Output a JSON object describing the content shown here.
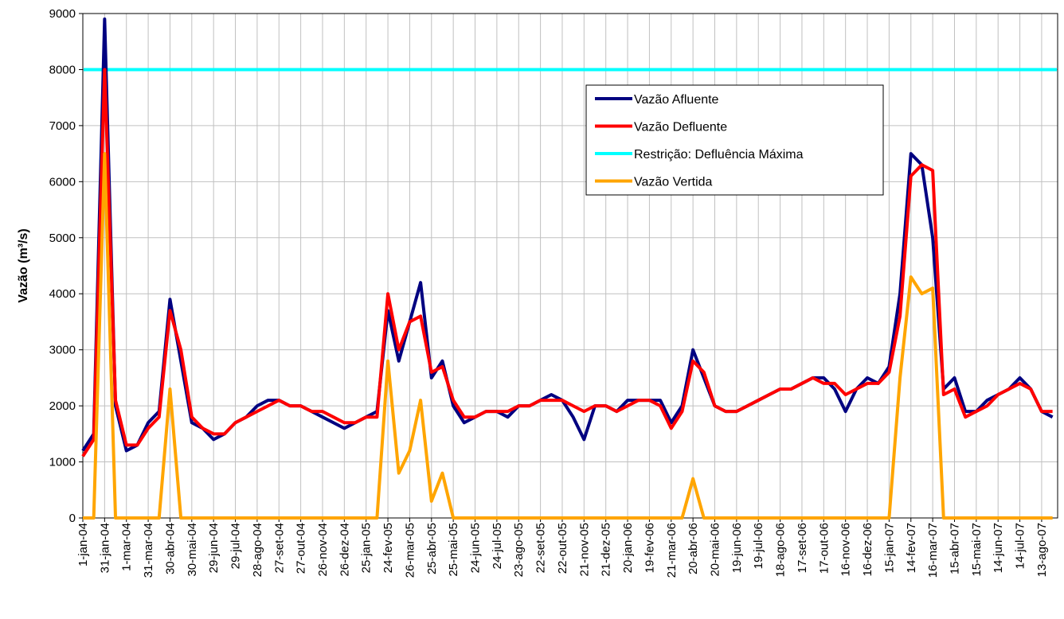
{
  "chart_data": {
    "type": "line",
    "y_label": "Vazão (m³/s)",
    "xlim": [
      "2004-01-01",
      "2007-09-04"
    ],
    "ylim": [
      0,
      9000
    ],
    "yticks": [
      0,
      1000,
      2000,
      3000,
      4000,
      5000,
      6000,
      7000,
      8000,
      9000
    ],
    "xticks": [
      {
        "value": "2004-01-01",
        "label": "1-jan-04"
      },
      {
        "value": "2004-01-31",
        "label": "31-jan-04"
      },
      {
        "value": "2004-03-01",
        "label": "1-mar-04"
      },
      {
        "value": "2004-03-31",
        "label": "31-mar-04"
      },
      {
        "value": "2004-04-30",
        "label": "30-abr-04"
      },
      {
        "value": "2004-05-30",
        "label": "30-mai-04"
      },
      {
        "value": "2004-06-29",
        "label": "29-jun-04"
      },
      {
        "value": "2004-07-29",
        "label": "29-jul-04"
      },
      {
        "value": "2004-08-28",
        "label": "28-ago-04"
      },
      {
        "value": "2004-09-27",
        "label": "27-set-04"
      },
      {
        "value": "2004-10-27",
        "label": "27-out-04"
      },
      {
        "value": "2004-11-26",
        "label": "26-nov-04"
      },
      {
        "value": "2004-12-26",
        "label": "26-dez-04"
      },
      {
        "value": "2005-01-25",
        "label": "25-jan-05"
      },
      {
        "value": "2005-02-24",
        "label": "24-fev-05"
      },
      {
        "value": "2005-03-26",
        "label": "26-mar-05"
      },
      {
        "value": "2005-04-25",
        "label": "25-abr-05"
      },
      {
        "value": "2005-05-25",
        "label": "25-mai-05"
      },
      {
        "value": "2005-06-24",
        "label": "24-jun-05"
      },
      {
        "value": "2005-07-24",
        "label": "24-jul-05"
      },
      {
        "value": "2005-08-23",
        "label": "23-ago-05"
      },
      {
        "value": "2005-09-22",
        "label": "22-set-05"
      },
      {
        "value": "2005-10-22",
        "label": "22-out-05"
      },
      {
        "value": "2005-11-21",
        "label": "21-nov-05"
      },
      {
        "value": "2005-12-21",
        "label": "21-dez-05"
      },
      {
        "value": "2006-01-20",
        "label": "20-jan-06"
      },
      {
        "value": "2006-02-19",
        "label": "19-fev-06"
      },
      {
        "value": "2006-03-21",
        "label": "21-mar-06"
      },
      {
        "value": "2006-04-20",
        "label": "20-abr-06"
      },
      {
        "value": "2006-05-20",
        "label": "20-mai-06"
      },
      {
        "value": "2006-06-19",
        "label": "19-jun-06"
      },
      {
        "value": "2006-07-19",
        "label": "19-jul-06"
      },
      {
        "value": "2006-08-18",
        "label": "18-ago-06"
      },
      {
        "value": "2006-09-17",
        "label": "17-set-06"
      },
      {
        "value": "2006-10-17",
        "label": "17-out-06"
      },
      {
        "value": "2006-11-16",
        "label": "16-nov-06"
      },
      {
        "value": "2006-12-16",
        "label": "16-dez-06"
      },
      {
        "value": "2007-01-15",
        "label": "15-jan-07"
      },
      {
        "value": "2007-02-14",
        "label": "14-fev-07"
      },
      {
        "value": "2007-03-16",
        "label": "16-mar-07"
      },
      {
        "value": "2007-04-15",
        "label": "15-abr-07"
      },
      {
        "value": "2007-05-15",
        "label": "15-mai-07"
      },
      {
        "value": "2007-06-14",
        "label": "14-jun-07"
      },
      {
        "value": "2007-07-14",
        "label": "14-jul-07"
      },
      {
        "value": "2007-08-13",
        "label": "13-ago-07"
      }
    ],
    "grid": true,
    "x": [
      "2004-01-01",
      "2004-01-16",
      "2004-01-31",
      "2004-02-15",
      "2004-03-01",
      "2004-03-16",
      "2004-03-31",
      "2004-04-15",
      "2004-04-30",
      "2004-05-15",
      "2004-05-30",
      "2004-06-14",
      "2004-06-29",
      "2004-07-14",
      "2004-07-29",
      "2004-08-13",
      "2004-08-28",
      "2004-09-12",
      "2004-09-27",
      "2004-10-12",
      "2004-10-27",
      "2004-11-11",
      "2004-11-26",
      "2004-12-11",
      "2004-12-26",
      "2005-01-10",
      "2005-01-25",
      "2005-02-09",
      "2005-02-24",
      "2005-03-11",
      "2005-03-26",
      "2005-04-10",
      "2005-04-25",
      "2005-05-10",
      "2005-05-25",
      "2005-06-09",
      "2005-06-24",
      "2005-07-09",
      "2005-07-24",
      "2005-08-08",
      "2005-08-23",
      "2005-09-07",
      "2005-09-22",
      "2005-10-07",
      "2005-10-22",
      "2005-11-06",
      "2005-11-21",
      "2005-12-06",
      "2005-12-21",
      "2006-01-05",
      "2006-01-20",
      "2006-02-04",
      "2006-02-19",
      "2006-03-06",
      "2006-03-21",
      "2006-04-05",
      "2006-04-20",
      "2006-05-05",
      "2006-05-20",
      "2006-06-04",
      "2006-06-19",
      "2006-07-04",
      "2006-07-19",
      "2006-08-03",
      "2006-08-18",
      "2006-09-02",
      "2006-09-17",
      "2006-10-02",
      "2006-10-17",
      "2006-11-01",
      "2006-11-16",
      "2006-12-01",
      "2006-12-16",
      "2006-12-31",
      "2007-01-15",
      "2007-01-30",
      "2007-02-14",
      "2007-03-01",
      "2007-03-16",
      "2007-03-31",
      "2007-04-15",
      "2007-04-30",
      "2007-05-15",
      "2007-05-30",
      "2007-06-14",
      "2007-06-29",
      "2007-07-14",
      "2007-07-29",
      "2007-08-13",
      "2007-08-28"
    ],
    "series": [
      {
        "name": "Vazão Afluente",
        "color": "#000080",
        "values": [
          1200,
          1500,
          8900,
          2000,
          1200,
          1300,
          1700,
          1900,
          3900,
          2800,
          1700,
          1600,
          1400,
          1500,
          1700,
          1800,
          2000,
          2100,
          2100,
          2000,
          2000,
          1900,
          1800,
          1700,
          1600,
          1700,
          1800,
          1900,
          3700,
          2800,
          3500,
          4200,
          2500,
          2800,
          2000,
          1700,
          1800,
          1900,
          1900,
          1800,
          2000,
          2000,
          2100,
          2200,
          2100,
          1800,
          1400,
          2000,
          2000,
          1900,
          2100,
          2100,
          2100,
          2100,
          1700,
          2000,
          3000,
          2500,
          2000,
          1900,
          1900,
          2000,
          2100,
          2200,
          2300,
          2300,
          2400,
          2500,
          2500,
          2300,
          1900,
          2300,
          2500,
          2400,
          2700,
          4000,
          6500,
          6300,
          5000,
          2300,
          2500,
          1900,
          1900,
          2100,
          2200,
          2300,
          2500,
          2300,
          1900,
          1800
        ]
      },
      {
        "name": "Vazão Defluente",
        "color": "#ff0000",
        "values": [
          1100,
          1400,
          8000,
          2100,
          1300,
          1300,
          1600,
          1800,
          3700,
          3000,
          1800,
          1600,
          1500,
          1500,
          1700,
          1800,
          1900,
          2000,
          2100,
          2000,
          2000,
          1900,
          1900,
          1800,
          1700,
          1700,
          1800,
          1800,
          4000,
          3000,
          3500,
          3600,
          2600,
          2700,
          2100,
          1800,
          1800,
          1900,
          1900,
          1900,
          2000,
          2000,
          2100,
          2100,
          2100,
          2000,
          1900,
          2000,
          2000,
          1900,
          2000,
          2100,
          2100,
          2000,
          1600,
          1900,
          2800,
          2600,
          2000,
          1900,
          1900,
          2000,
          2100,
          2200,
          2300,
          2300,
          2400,
          2500,
          2400,
          2400,
          2200,
          2300,
          2400,
          2400,
          2600,
          3600,
          6100,
          6300,
          6200,
          2200,
          2300,
          1800,
          1900,
          2000,
          2200,
          2300,
          2400,
          2300,
          1900,
          1900
        ]
      },
      {
        "name": "Restrição: Defluência Máxima",
        "color": "#00ffff",
        "value": 8000
      },
      {
        "name": "Vazão Vertida",
        "color": "#ffa500",
        "values": [
          0,
          0,
          6500,
          0,
          0,
          0,
          0,
          0,
          2300,
          0,
          0,
          0,
          0,
          0,
          0,
          0,
          0,
          0,
          0,
          0,
          0,
          0,
          0,
          0,
          0,
          0,
          0,
          0,
          2800,
          800,
          1200,
          2100,
          300,
          800,
          0,
          0,
          0,
          0,
          0,
          0,
          0,
          0,
          0,
          0,
          0,
          0,
          0,
          0,
          0,
          0,
          0,
          0,
          0,
          0,
          0,
          0,
          700,
          0,
          0,
          0,
          0,
          0,
          0,
          0,
          0,
          0,
          0,
          0,
          0,
          0,
          0,
          0,
          0,
          0,
          0,
          2500,
          4300,
          4000,
          4100,
          0,
          0,
          0,
          0,
          0,
          0,
          0,
          0,
          0,
          0,
          0
        ]
      }
    ]
  }
}
